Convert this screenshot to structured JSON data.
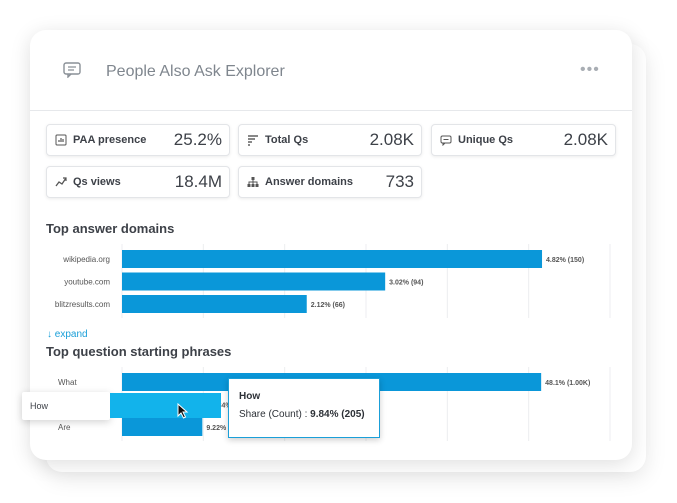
{
  "header": {
    "title": "People Also Ask Explorer",
    "icon": "chat-icon",
    "menu_label": "•••"
  },
  "metrics": [
    {
      "label": "PAA presence",
      "value": "25.2%",
      "icon": "bar-chart-icon"
    },
    {
      "label": "Total Qs",
      "value": "2.08K",
      "icon": "list-icon"
    },
    {
      "label": "Unique Qs",
      "value": "2.08K",
      "icon": "message-icon"
    },
    {
      "label": "Qs views",
      "value": "18.4M",
      "icon": "trend-icon"
    },
    {
      "label": "Answer domains",
      "value": "733",
      "icon": "hierarchy-icon"
    }
  ],
  "colors": {
    "bar": "#0a97d9",
    "bar_hover": "#12b3eb",
    "accent": "#1a9fd8"
  },
  "expand_label": "expand",
  "chart_data": [
    {
      "type": "bar",
      "title": "Top answer domains",
      "orientation": "horizontal",
      "categories": [
        "wikipedia.org",
        "youtube.com",
        "blitzresults.com"
      ],
      "values": [
        4.82,
        3.02,
        2.12
      ],
      "labels": [
        "4.82% (150)",
        "3.02% (94)",
        "2.12% (66)"
      ],
      "grid": true
    },
    {
      "type": "bar",
      "title": "Top question starting phrases",
      "orientation": "horizontal",
      "categories": [
        "What",
        "How",
        "Are"
      ],
      "values": [
        48.1,
        9.84,
        9.22
      ],
      "labels": [
        "48.1% (1.00K)",
        "9.84% (205)",
        "9.22% (192)"
      ],
      "grid": true
    }
  ],
  "tooltip": {
    "title": "How",
    "label": "Share (Count) : ",
    "value": "9.84% (205)"
  },
  "hover_category": "How"
}
